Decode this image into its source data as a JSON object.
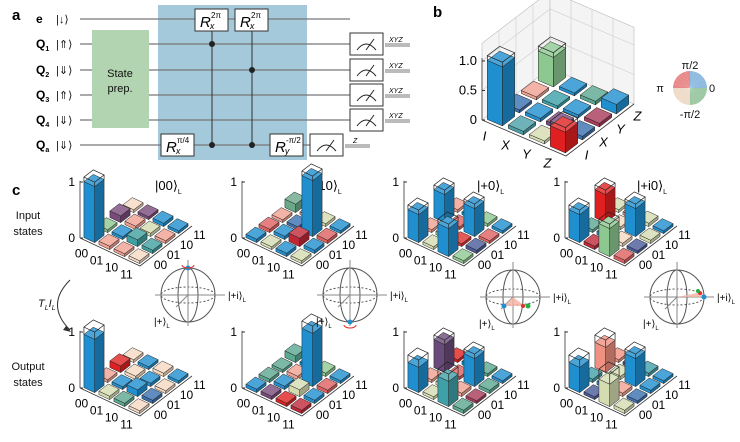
{
  "panel_a": {
    "label": "a",
    "qubits": [
      {
        "name": "e",
        "sub": "",
        "state": "|↓⟩"
      },
      {
        "name": "Q",
        "sub": "1",
        "state": "|⇑⟩"
      },
      {
        "name": "Q",
        "sub": "2",
        "state": "|⇓⟩"
      },
      {
        "name": "Q",
        "sub": "3",
        "state": "|⇑⟩"
      },
      {
        "name": "Q",
        "sub": "4",
        "state": "|⇓⟩"
      },
      {
        "name": "Q",
        "sub": "a",
        "state": "|⇓⟩"
      }
    ],
    "state_prep": [
      "State",
      "prep."
    ],
    "gates": [
      {
        "base": "R",
        "sub": "x",
        "sup": "2π"
      },
      {
        "base": "R",
        "sub": "x",
        "sup": "2π"
      },
      {
        "base": "R",
        "sub": "x",
        "sup": "π/4"
      },
      {
        "base": "R",
        "sub": "y",
        "sup": "-π/2"
      }
    ],
    "measure_outputs": [
      "XYZ",
      "XYZ",
      "XYZ",
      "XYZ",
      "Z"
    ],
    "colors": {
      "state_prep": "#b2d4b0",
      "gate_block": "#a3c9da"
    }
  },
  "panel_b": {
    "label": "b",
    "y_ticks": [
      "1.0",
      "0.5",
      "0"
    ],
    "categories": [
      "I",
      "X",
      "Y",
      "Z"
    ],
    "phase_wheel": {
      "top": "π/2",
      "left": "π",
      "right": "0",
      "bottom": "-π/2"
    }
  },
  "panel_c": {
    "label": "c",
    "row_labels": [
      [
        "Input",
        "states"
      ],
      [
        "Output",
        "states"
      ]
    ],
    "states": [
      {
        "ket": "|00⟩",
        "sub": "L"
      },
      {
        "ket": "|10⟩",
        "sub": "L"
      },
      {
        "ket": "|+0⟩",
        "sub": "L"
      },
      {
        "ket": "|+i0⟩",
        "sub": "L"
      }
    ],
    "y_ticks": [
      "1",
      "0"
    ],
    "categories": [
      "00",
      "01",
      "10",
      "11"
    ],
    "transform": {
      "t": "T",
      "t_sub": "L",
      "i": "I",
      "i_sub": "L"
    },
    "bloch": {
      "right_label": "|+i⟩",
      "front_label": "|+⟩",
      "sub": "L"
    }
  },
  "chart_data": [
    {
      "id": "b",
      "type": "bar3d",
      "categories": [
        "I",
        "X",
        "Y",
        "Z"
      ],
      "y_ticks": [
        0,
        0.5,
        1.0
      ],
      "heights": [
        1.0,
        0.05,
        0.05,
        0.5,
        0.06,
        0.06,
        0.05,
        0.05,
        0.05,
        0.06,
        0.05,
        0.06,
        0.35,
        0.06,
        0.06,
        0.16
      ],
      "colors": [
        "#1f8fd0",
        "#3a6fb0",
        "#f0a090",
        "#8cc890",
        "#4aa0a8",
        "#1f8fd0",
        "#3aa0a8",
        "#1f8fd0",
        "#d4dcb0",
        "#7a4a7a",
        "#1f8fd0",
        "#5aa890",
        "#e02020",
        "#3a6fb0",
        "#a83a5a",
        "#1f8fd0"
      ],
      "ideal": [
        [
          0,
          1.0
        ],
        [
          3,
          0.5
        ],
        [
          12,
          0.35
        ]
      ]
    },
    {
      "id": "in-00",
      "type": "bar3d",
      "categories": [
        "00",
        "01",
        "10",
        "11"
      ],
      "y_ticks": [
        0,
        1
      ],
      "heights": [
        1.0,
        0.05,
        0.12,
        0.05,
        0.06,
        0.05,
        0.06,
        0.05,
        0.05,
        0.12,
        0.06,
        0.06,
        0.05,
        0.06,
        0.05,
        0.05
      ],
      "colors": [
        "#1f8fd0",
        "#8cc890",
        "#7a4a7a",
        "#f5d8c0",
        "#f0a090",
        "#1f8fd0",
        "#f0a090",
        "#7a4a7a",
        "#f0a090",
        "#40a0a0",
        "#d4dcb0",
        "#1f8fd0",
        "#f5d8c0",
        "#40a0a0",
        "#f0a090",
        "#1f8fd0"
      ],
      "ideal": [
        [
          0,
          1.0
        ]
      ]
    },
    {
      "id": "in-10",
      "type": "bar3d",
      "categories": [
        "00",
        "01",
        "10",
        "11"
      ],
      "y_ticks": [
        0,
        1
      ],
      "heights": [
        0.06,
        0.06,
        0.05,
        0.15,
        0.05,
        0.06,
        0.05,
        0.05,
        0.06,
        0.15,
        1.0,
        0.05,
        0.05,
        0.06,
        0.06,
        0.05
      ],
      "colors": [
        "#1f8fd0",
        "#e06060",
        "#f0a090",
        "#6aa888",
        "#d4dcb0",
        "#1f8fd0",
        "#3a6fb0",
        "#f0a090",
        "#1f8fd0",
        "#c02838",
        "#1f8fd0",
        "#d4dcb0",
        "#d4dcb0",
        "#1f8fd0",
        "#e06060",
        "#1f8fd0"
      ],
      "ideal": [
        [
          10,
          1.0
        ]
      ]
    },
    {
      "id": "in-plus0",
      "type": "bar3d",
      "categories": [
        "00",
        "01",
        "10",
        "11"
      ],
      "y_ticks": [
        0,
        1
      ],
      "heights": [
        0.5,
        0.05,
        0.5,
        0.05,
        0.05,
        0.06,
        0.05,
        0.05,
        0.5,
        0.05,
        0.5,
        0.05,
        0.05,
        0.06,
        0.05,
        0.05
      ],
      "colors": [
        "#1f8fd0",
        "#f0a090",
        "#1f8fd0",
        "#f0a090",
        "#d4dcb0",
        "#8cc890",
        "#e06060",
        "#1f8fd0",
        "#1f8fd0",
        "#e03030",
        "#1f8fd0",
        "#8cc890",
        "#8cc890",
        "#4a5a9a",
        "#e06060",
        "#1f8fd0"
      ],
      "ideal": [
        [
          0,
          0.5
        ],
        [
          2,
          0.5
        ],
        [
          8,
          0.5
        ],
        [
          10,
          0.5
        ]
      ]
    },
    {
      "id": "in-plusi0",
      "type": "bar3d",
      "categories": [
        "00",
        "01",
        "10",
        "11"
      ],
      "y_ticks": [
        0,
        1
      ],
      "heights": [
        0.5,
        0.05,
        0.5,
        0.05,
        0.06,
        0.06,
        0.05,
        0.05,
        0.5,
        0.06,
        0.5,
        0.06,
        0.06,
        0.05,
        0.06,
        0.05
      ],
      "colors": [
        "#1f8fd0",
        "#5aa890",
        "#e02020",
        "#d4dcb0",
        "#c02838",
        "#1f8fd0",
        "#f5d8c0",
        "#f0a090",
        "#8cc890",
        "#f5d8c0",
        "#1f8fd0",
        "#d4dcb0",
        "#e06060",
        "#4a5a9a",
        "#d4dcb0",
        "#1f8fd0"
      ],
      "ideal": [
        [
          0,
          0.5
        ],
        [
          2,
          0.5
        ],
        [
          8,
          0.5
        ],
        [
          10,
          0.5
        ]
      ]
    },
    {
      "id": "out-00",
      "type": "bar3d",
      "categories": [
        "00",
        "01",
        "10",
        "11"
      ],
      "y_ticks": [
        0,
        1
      ],
      "heights": [
        0.95,
        0.05,
        0.12,
        0.05,
        0.06,
        0.05,
        0.06,
        0.05,
        0.06,
        0.12,
        0.06,
        0.06,
        0.05,
        0.06,
        0.05,
        0.05
      ],
      "colors": [
        "#1f8fd0",
        "#f0a090",
        "#e02020",
        "#f5d8c0",
        "#d4dcb0",
        "#1f8fd0",
        "#f5d8c0",
        "#1f8fd0",
        "#5aa890",
        "#1f8fd0",
        "#1f8fd0",
        "#f5d8c0",
        "#f5d8c0",
        "#3a6fb0",
        "#f5d8c0",
        "#1f8fd0"
      ],
      "ideal": [
        [
          0,
          1.0
        ]
      ]
    },
    {
      "id": "out-10",
      "type": "bar3d",
      "categories": [
        "00",
        "01",
        "10",
        "11"
      ],
      "y_ticks": [
        0,
        1
      ],
      "heights": [
        0.06,
        0.06,
        0.05,
        0.12,
        0.06,
        0.06,
        0.06,
        0.05,
        0.06,
        0.12,
        0.95,
        0.06,
        0.06,
        0.06,
        0.06,
        0.05
      ],
      "colors": [
        "#1f8fd0",
        "#5aa890",
        "#5aa890",
        "#5aa890",
        "#7a4a7a",
        "#1f8fd0",
        "#f0a090",
        "#1f8fd0",
        "#e02020",
        "#d4dcb0",
        "#1f8fd0",
        "#8cc890",
        "#c02838",
        "#1f8fd0",
        "#e06060",
        "#1f8fd0"
      ],
      "ideal": [
        [
          10,
          1.0
        ]
      ]
    },
    {
      "id": "out-plus0",
      "type": "bar3d",
      "categories": [
        "00",
        "01",
        "10",
        "11"
      ],
      "y_ticks": [
        0,
        1
      ],
      "heights": [
        0.45,
        0.05,
        0.5,
        0.05,
        0.05,
        0.06,
        0.05,
        0.06,
        0.45,
        0.06,
        0.5,
        0.05,
        0.06,
        0.05,
        0.06,
        0.05
      ],
      "colors": [
        "#1f8fd0",
        "#f0a090",
        "#6a4a7a",
        "#e02020",
        "#d4dcb0",
        "#d4dcb0",
        "#e06060",
        "#1f8fd0",
        "#40a0a8",
        "#f0a090",
        "#1f8fd0",
        "#5aa890",
        "#5aa890",
        "#a83a5a",
        "#5aa890",
        "#1f8fd0"
      ],
      "ideal": [
        [
          0,
          0.5
        ],
        [
          2,
          0.5
        ],
        [
          8,
          0.5
        ],
        [
          10,
          0.5
        ]
      ]
    },
    {
      "id": "out-plusi0",
      "type": "bar3d",
      "categories": [
        "00",
        "01",
        "10",
        "11"
      ],
      "y_ticks": [
        0,
        1
      ],
      "heights": [
        0.45,
        0.06,
        0.45,
        0.05,
        0.05,
        0.06,
        0.06,
        0.05,
        0.4,
        0.06,
        0.5,
        0.06,
        0.06,
        0.05,
        0.06,
        0.05
      ],
      "colors": [
        "#1f8fd0",
        "#40a0a8",
        "#f09080",
        "#f09080",
        "#4a5a9a",
        "#1f8fd0",
        "#d4dcb0",
        "#6a4a7a",
        "#d4dcb0",
        "#f0a090",
        "#1f8fd0",
        "#40a0a8",
        "#d4dcb0",
        "#3a6fb0",
        "#1f8fd0",
        "#1f8fd0"
      ],
      "ideal": [
        [
          0,
          0.5
        ],
        [
          2,
          0.5
        ],
        [
          8,
          0.5
        ],
        [
          10,
          0.5
        ]
      ]
    }
  ]
}
